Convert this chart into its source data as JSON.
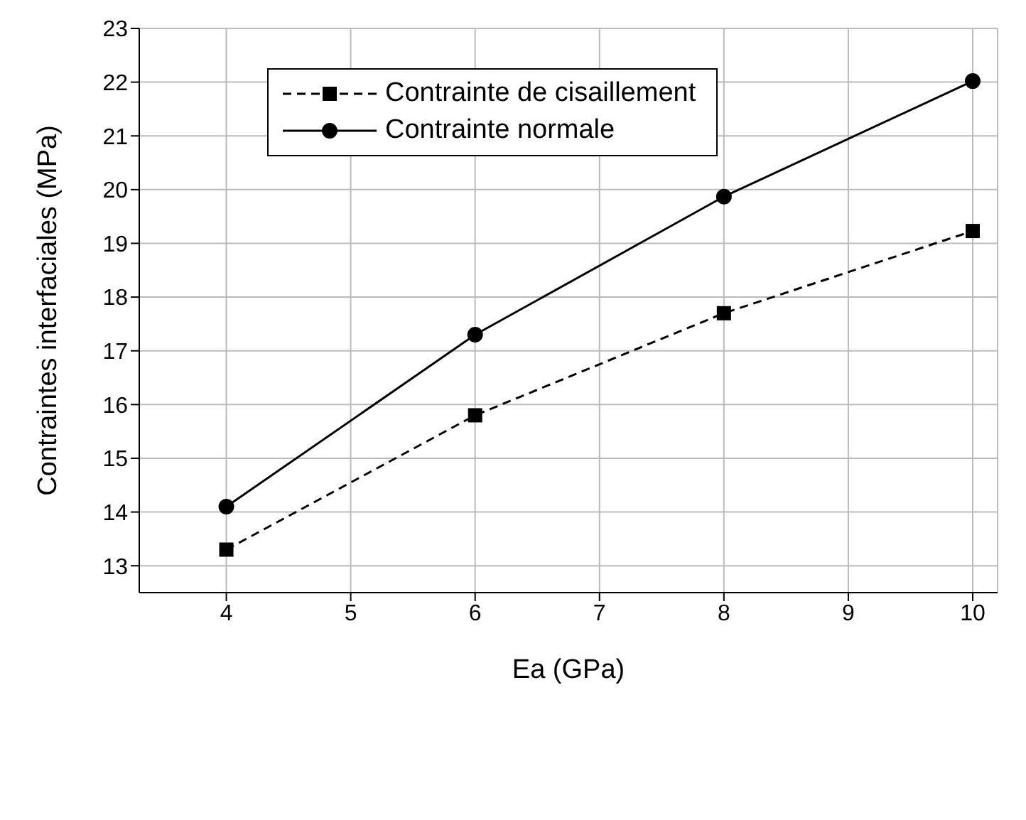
{
  "chart_data": {
    "type": "line",
    "xlabel": "Ea (GPa)",
    "ylabel": "Contraintes interfaciales (MPa)",
    "x": [
      4,
      6,
      8,
      10
    ],
    "series": [
      {
        "name": "Contrainte de cisaillement",
        "color": "#000000",
        "values": [
          13.3,
          15.8,
          17.7,
          19.23
        ],
        "marker": "square",
        "line_style": "dashed"
      },
      {
        "name": "Contrainte normale",
        "color": "#000000",
        "values": [
          14.1,
          17.3,
          19.87,
          22.02
        ],
        "marker": "circle",
        "line_style": "solid"
      }
    ],
    "xlim": [
      3.3,
      10.2
    ],
    "xticks": [
      4,
      5,
      6,
      7,
      8,
      9,
      10
    ],
    "ylim": [
      12.5,
      23
    ],
    "yticks": [
      13,
      14,
      15,
      16,
      17,
      18,
      19,
      20,
      21,
      22,
      23
    ],
    "grid": true,
    "legend": "top left"
  }
}
